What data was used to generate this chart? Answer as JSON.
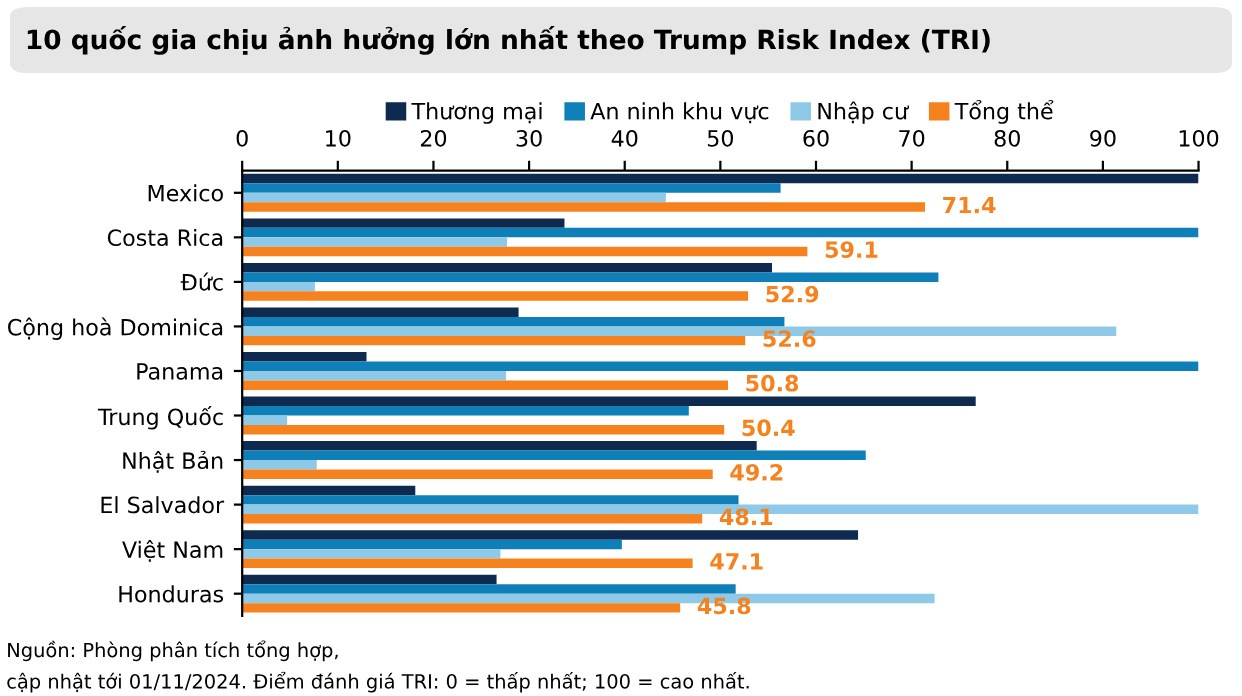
{
  "chart_data": {
    "type": "bar",
    "orientation": "horizontal",
    "title": "10 quốc gia chịu ảnh hưởng lớn nhất theo Trump Risk Index (TRI)",
    "categories": [
      "Mexico",
      "Costa Rica",
      "Đức",
      "Cộng hoà Dominica",
      "Panama",
      "Trung Quốc",
      "Nhật Bản",
      "El Salvador",
      "Việt Nam",
      "Honduras"
    ],
    "series": [
      {
        "name": "Thương mại",
        "color": "#0e2a4f",
        "values": [
          100,
          33.7,
          55.4,
          28.9,
          13.0,
          76.7,
          53.8,
          18.1,
          64.4,
          26.6
        ]
      },
      {
        "name": "An ninh khu vực",
        "color": "#0f7fb8",
        "values": [
          56.3,
          100,
          72.8,
          56.7,
          100,
          46.7,
          65.2,
          51.9,
          39.7,
          51.6
        ]
      },
      {
        "name": "Nhập cư",
        "color": "#8fc9e8",
        "values": [
          44.3,
          27.7,
          7.6,
          91.4,
          27.6,
          4.7,
          7.8,
          100,
          27.0,
          72.4
        ]
      },
      {
        "name": "Tổng thể",
        "color": "#f5821f",
        "values": [
          71.4,
          59.1,
          52.9,
          52.6,
          50.8,
          50.4,
          49.2,
          48.1,
          47.1,
          45.8
        ],
        "value_labels": [
          "71.4",
          "59.1",
          "52.9",
          "52.6",
          "50.8",
          "50.4",
          "49.2",
          "48.1",
          "47.1",
          "45.8"
        ]
      }
    ],
    "xlim": [
      0,
      100
    ],
    "xticks": [
      0,
      10,
      20,
      30,
      40,
      50,
      60,
      70,
      80,
      90,
      100
    ],
    "grid": false,
    "legend": "top",
    "annotations": [
      "Nguồn: Phòng phân tích tổng hợp,",
      "cập nhật tới 01/11/2024. Điểm đánh giá TRI: 0 = thấp nhất; 100 = cao nhất."
    ]
  }
}
